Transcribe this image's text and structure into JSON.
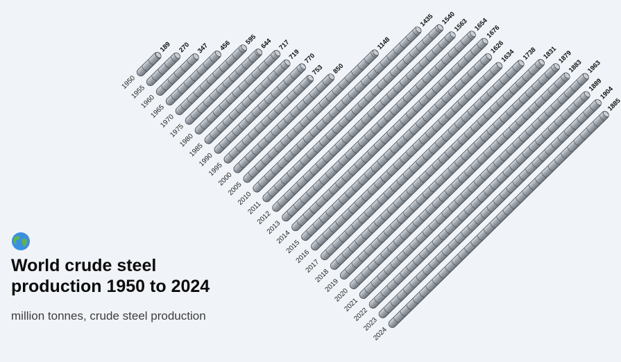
{
  "chart_data": {
    "type": "bar",
    "title": "World crude steel production 1950 to 2024",
    "subtitle": "million tonnes, crude steel production",
    "icon": "globe-icon",
    "bar_color": "#9aa1aa",
    "categories": [
      "1950",
      "1955",
      "1960",
      "1965",
      "1970",
      "1975",
      "1980",
      "1985",
      "1990",
      "1995",
      "2000",
      "2005",
      "2010",
      "2011",
      "2012",
      "2013",
      "2014",
      "2015",
      "2016",
      "2017",
      "2018",
      "2019",
      "2020",
      "2021",
      "2022",
      "2023",
      "2024"
    ],
    "values": [
      189,
      270,
      347,
      456,
      595,
      644,
      717,
      719,
      770,
      753,
      850,
      1148,
      1435,
      1540,
      1563,
      1654,
      1676,
      1626,
      1634,
      1738,
      1831,
      1879,
      1883,
      1963,
      1889,
      1904,
      1885
    ]
  }
}
